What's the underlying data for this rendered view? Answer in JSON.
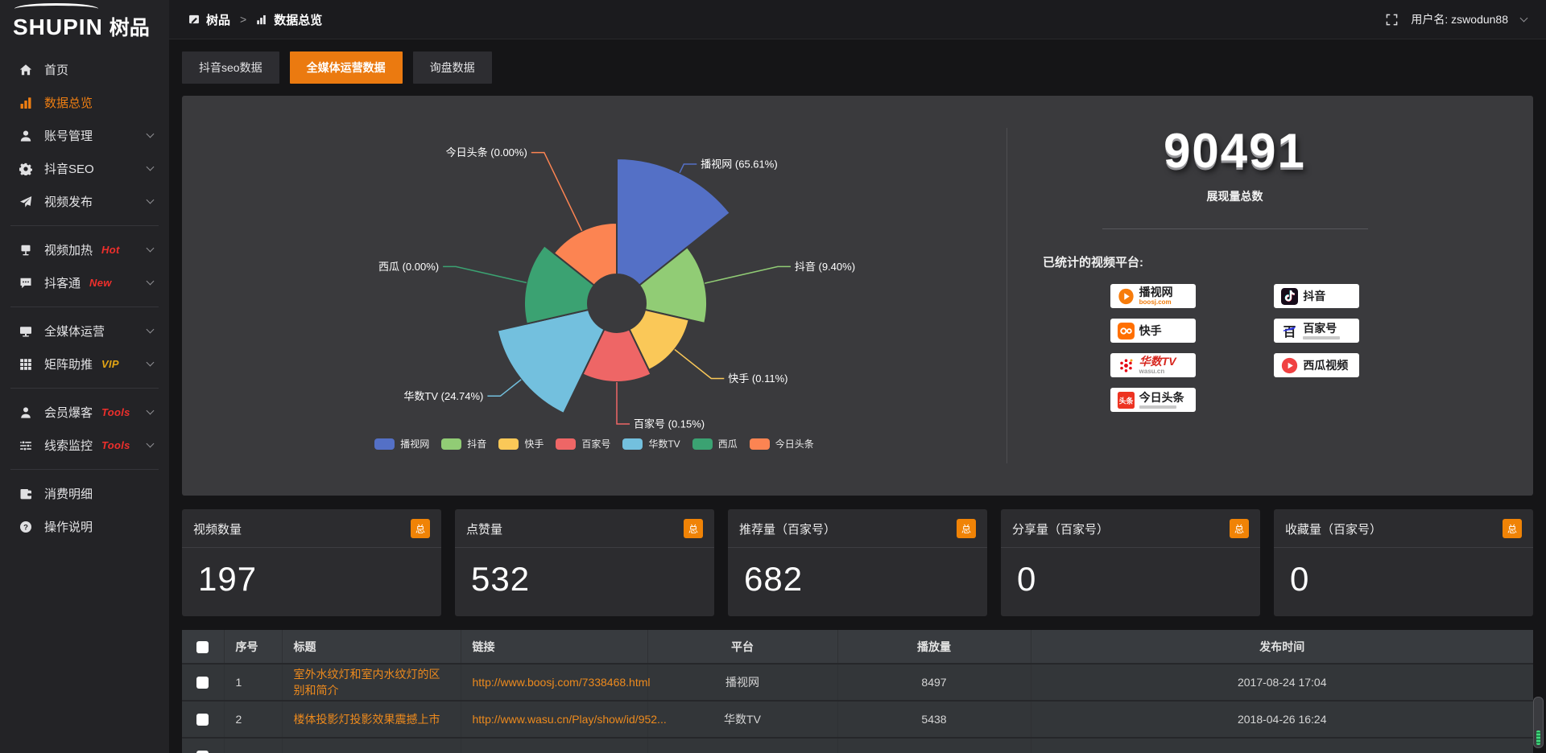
{
  "logo": {
    "brand_en": "SHUPIN",
    "brand_cn": "树品"
  },
  "topbar": {
    "breadcrumb": [
      {
        "label": "树品",
        "icon": "app-edit-icon"
      },
      {
        "label": "数据总览",
        "icon": "bars-mini-icon"
      }
    ],
    "separator": ">",
    "username": "用户名: zswodun88"
  },
  "sidebar": {
    "items": [
      {
        "label": "首页",
        "icon": "home-icon"
      },
      {
        "label": "数据总览",
        "icon": "bars-icon",
        "active": true
      },
      {
        "label": "账号管理",
        "icon": "user-icon",
        "chevron": true
      },
      {
        "label": "抖音SEO",
        "icon": "gear-icon",
        "chevron": true
      },
      {
        "label": "视频发布",
        "icon": "publish-icon",
        "chevron": true,
        "divider_after": true
      },
      {
        "label": "视频加热",
        "icon": "billboard-icon",
        "badge": "Hot",
        "badge_color": "#ee2f2c",
        "chevron": true
      },
      {
        "label": "抖客通",
        "icon": "chat-icon",
        "badge": "New",
        "badge_color": "#ee2f2c",
        "chevron": true,
        "divider_after": true
      },
      {
        "label": "全媒体运营",
        "icon": "monitor-icon",
        "chevron": true
      },
      {
        "label": "矩阵助推",
        "icon": "grid-icon",
        "badge": "VIP",
        "badge_color": "#e2a414",
        "chevron": true,
        "divider_after": true
      },
      {
        "label": "会员爆客",
        "icon": "person-icon",
        "badge": "Tools",
        "badge_color": "#ee2f2c",
        "chevron": true
      },
      {
        "label": "线索监控",
        "icon": "sliders-icon",
        "badge": "Tools",
        "badge_color": "#ee2f2c",
        "chevron": true,
        "divider_after": true
      },
      {
        "label": "消费明细",
        "icon": "wallet-icon"
      },
      {
        "label": "操作说明",
        "icon": "help-icon"
      }
    ]
  },
  "tabs": [
    {
      "label": "抖音seo数据",
      "active": false
    },
    {
      "label": "全媒体运营数据",
      "active": true
    },
    {
      "label": "询盘数据",
      "active": false
    }
  ],
  "chart_data": {
    "type": "pie",
    "variant": "nightingale-rose",
    "title": "",
    "series": [
      {
        "name": "播视网",
        "percent": 65.61,
        "color": "#5470c6",
        "label": "播视网 (65.61%)"
      },
      {
        "name": "抖音",
        "percent": 9.4,
        "color": "#91cc75",
        "label": "抖音 (9.40%)"
      },
      {
        "name": "快手",
        "percent": 0.11,
        "color": "#fac858",
        "label": "快手 (0.11%)"
      },
      {
        "name": "百家号",
        "percent": 0.15,
        "color": "#ee6666",
        "label": "百家号 (0.15%)"
      },
      {
        "name": "华数TV",
        "percent": 24.74,
        "color": "#73c0de",
        "label": "华数TV (24.74%)"
      },
      {
        "name": "西瓜",
        "percent": 0.0,
        "color": "#3ba272",
        "label": "西瓜 (0.00%)"
      },
      {
        "name": "今日头条",
        "percent": 0.0,
        "color": "#fc8452",
        "label": "今日头条 (0.00%)"
      }
    ],
    "legend": [
      "播视网",
      "抖音",
      "快手",
      "百家号",
      "华数TV",
      "西瓜",
      "今日头条"
    ],
    "legend_position": "bottom",
    "display_radii": [
      180,
      112,
      92,
      98,
      152,
      115,
      100
    ],
    "inner_radius": 36
  },
  "summary": {
    "total_value": "90491",
    "total_label": "展现量总数",
    "platforms_label": "已统计的视频平台:",
    "left_column": [
      {
        "name": "播视网",
        "sub": "boosj.com",
        "logo": "boosj-logo"
      },
      {
        "name": "快手",
        "logo": "kuaishou-logo"
      },
      {
        "name": "华数TV",
        "sub": "wasu.cn",
        "logo": "wasu-logo"
      },
      {
        "name": "今日头条",
        "logo": "toutiao-logo",
        "subline": true
      }
    ],
    "right_column": [
      {
        "name": "抖音",
        "logo": "douyin-logo"
      },
      {
        "name": "百家号",
        "logo": "baijia-logo",
        "subline": true
      },
      {
        "name": "西瓜视频",
        "logo": "xigua-logo"
      }
    ]
  },
  "stat_cards": [
    {
      "title": "视频数量",
      "badge": "总",
      "value": "197"
    },
    {
      "title": "点赞量",
      "badge": "总",
      "value": "532"
    },
    {
      "title": "推荐量（百家号）",
      "badge": "总",
      "value": "682"
    },
    {
      "title": "分享量（百家号）",
      "badge": "总",
      "value": "0"
    },
    {
      "title": "收藏量（百家号）",
      "badge": "总",
      "value": "0"
    }
  ],
  "table": {
    "headers": [
      "序号",
      "标题",
      "链接",
      "平台",
      "播放量",
      "发布时间"
    ],
    "rows": [
      {
        "num": "1",
        "title": "室外水纹灯和室内水纹灯的区别和简介",
        "link": "http://www.boosj.com/7338468.html",
        "platform": "播视网",
        "plays": "8497",
        "time": "2017-08-24 17:04"
      },
      {
        "num": "2",
        "title": "楼体投影灯投影效果震撼上市",
        "link": "http://www.wasu.cn/Play/show/id/952...",
        "platform": "华数TV",
        "plays": "5438",
        "time": "2018-04-26 16:24"
      }
    ]
  },
  "accent_color": "#eb7a10"
}
